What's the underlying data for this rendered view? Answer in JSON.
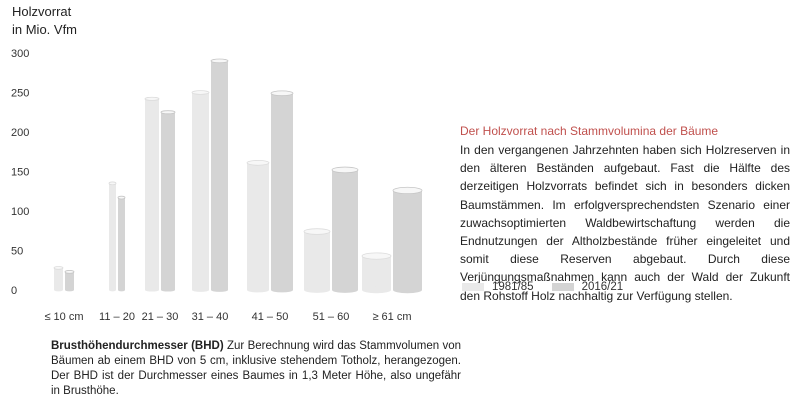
{
  "colors": {
    "series_1": "#e9e9e9",
    "series_2": "#d4d4d4",
    "accent": "#c0504d"
  },
  "y_axis_title": [
    "Holzvorrat",
    "in Mio. Vfm"
  ],
  "right_panel": {
    "title": "Der Holzvorrat nach Stammvolumina der Bäume",
    "body": "In den vergangenen Jahrzehnten haben sich Holzreserven in den älteren Beständen aufgebaut. Fast die Hälfte des derzeitigen Holzvorrats befindet sich in besonders dicken Baumstämmen. Im erfolgversprechendsten Szenario einer zuwachsoptimierten Waldbewirtschaftung werden die Endnutzungen der Altholz­bestände früher eingeleitet und somit diese Reserven abgebaut. Durch diese Verjüngungsmaßnahmen kann auch der Wald der Zukunft den Rohstoff Holz nachhaltig zur Verfügung stellen."
  },
  "footnote": {
    "term": "Brusthöhendurchmesser (BHD)",
    "text": " Zur Berechnung wird das Stammvolumen von Bäumen ab einem BHD von 5 cm, inklusive stehendem Totholz, herangezogen. Der BHD ist der Durchmesser eines Baumes in 1,3 Meter Höhe, also ungefähr in Brusthöhe."
  },
  "chart_data": {
    "type": "bar",
    "title": "",
    "xlabel": "",
    "ylabel": "Holzvorrat in Mio. Vfm",
    "ylim": [
      0,
      300
    ],
    "yticks": [
      0,
      50,
      100,
      150,
      200,
      250,
      300
    ],
    "categories": [
      "≤ 10 cm",
      "11 – 20",
      "21 – 30",
      "31 – 40",
      "41 – 50",
      "51 – 60",
      "≥ 61 cm"
    ],
    "series": [
      {
        "name": "1981/85",
        "values": [
          28,
          135,
          242,
          250,
          161,
          74,
          43
        ]
      },
      {
        "name": "2016/21",
        "values": [
          23,
          117,
          225,
          290,
          249,
          152,
          126
        ]
      }
    ],
    "legend_position": "bottom-right",
    "grid": false
  }
}
